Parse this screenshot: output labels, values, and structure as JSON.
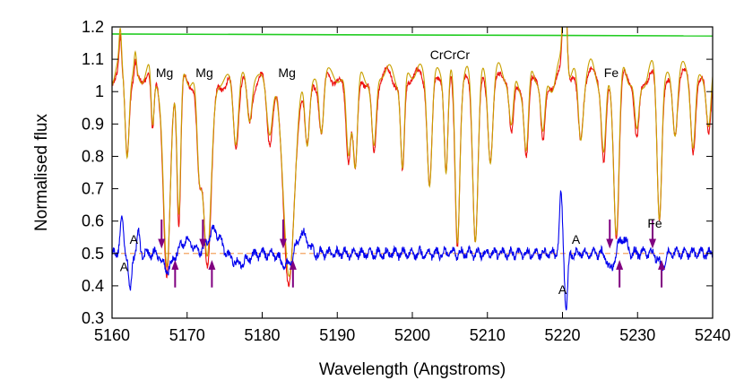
{
  "chart_data": {
    "type": "line",
    "title": "",
    "xlabel": "Wavelength (Angstroms)",
    "ylabel": "Normalised flux",
    "xlim": [
      5160,
      5240
    ],
    "ylim": [
      0.3,
      1.2
    ],
    "xticks": [
      5160,
      5170,
      5180,
      5190,
      5200,
      5210,
      5220,
      5230,
      5240
    ],
    "yticks": [
      0.3,
      0.4,
      0.5,
      0.6,
      0.7,
      0.8,
      0.9,
      1.0,
      1.1,
      1.2
    ],
    "ytick_labels": [
      "0.3",
      "0.4",
      "0.5",
      "0.6",
      "0.7",
      "0.8",
      "0.9",
      "1",
      "1.1",
      "1.2"
    ],
    "grid": false,
    "reference_line": {
      "y": 0.5,
      "style": "dashed",
      "color": "#f4a460"
    },
    "top_line": {
      "y_start": 1.178,
      "y_end": 1.172,
      "color": "#22cc22"
    },
    "series_colors": {
      "observed": "#ee1111",
      "model": "#c8a000",
      "residual": "#0000ee"
    },
    "continuum": 1.05,
    "lines": [
      {
        "x": 5162.0,
        "depth": 0.22,
        "width": 0.25
      },
      {
        "x": 5165.4,
        "depth": 0.18,
        "width": 0.2
      },
      {
        "x": 5167.3,
        "depth": 0.6,
        "width": 0.45
      },
      {
        "x": 5168.9,
        "depth": 0.46,
        "width": 0.25
      },
      {
        "x": 5171.6,
        "depth": 0.25,
        "width": 0.3
      },
      {
        "x": 5172.7,
        "depth": 0.57,
        "width": 0.55
      },
      {
        "x": 5176.5,
        "depth": 0.22,
        "width": 0.35
      },
      {
        "x": 5178.3,
        "depth": 0.12,
        "width": 0.3
      },
      {
        "x": 5181.0,
        "depth": 0.2,
        "width": 0.4
      },
      {
        "x": 5183.6,
        "depth": 0.62,
        "width": 0.75
      },
      {
        "x": 5186.0,
        "depth": 0.2,
        "width": 0.3
      },
      {
        "x": 5187.9,
        "depth": 0.18,
        "width": 0.3
      },
      {
        "x": 5191.5,
        "depth": 0.24,
        "width": 0.3
      },
      {
        "x": 5192.4,
        "depth": 0.3,
        "width": 0.3
      },
      {
        "x": 5194.9,
        "depth": 0.22,
        "width": 0.3
      },
      {
        "x": 5198.7,
        "depth": 0.28,
        "width": 0.25
      },
      {
        "x": 5202.3,
        "depth": 0.3,
        "width": 0.3
      },
      {
        "x": 5204.5,
        "depth": 0.3,
        "width": 0.25
      },
      {
        "x": 5206.0,
        "depth": 0.48,
        "width": 0.3
      },
      {
        "x": 5208.4,
        "depth": 0.5,
        "width": 0.35
      },
      {
        "x": 5210.4,
        "depth": 0.22,
        "width": 0.3
      },
      {
        "x": 5213.2,
        "depth": 0.18,
        "width": 0.3
      },
      {
        "x": 5215.2,
        "depth": 0.25,
        "width": 0.3
      },
      {
        "x": 5217.4,
        "depth": 0.2,
        "width": 0.3
      },
      {
        "x": 5222.4,
        "depth": 0.16,
        "width": 0.3
      },
      {
        "x": 5225.5,
        "depth": 0.25,
        "width": 0.3
      },
      {
        "x": 5227.2,
        "depth": 0.48,
        "width": 0.35
      },
      {
        "x": 5229.9,
        "depth": 0.18,
        "width": 0.3
      },
      {
        "x": 5232.9,
        "depth": 0.42,
        "width": 0.3
      },
      {
        "x": 5235.0,
        "depth": 0.16,
        "width": 0.3
      },
      {
        "x": 5237.4,
        "depth": 0.2,
        "width": 0.3
      },
      {
        "x": 5239.5,
        "depth": 0.16,
        "width": 0.3
      }
    ],
    "spikes": [
      {
        "x": 5161.1,
        "height": 0.1,
        "width": 0.15
      },
      {
        "x": 5220.3,
        "height": 0.35,
        "width": 0.25
      },
      {
        "x": 5163.1,
        "height": 0.06,
        "width": 0.15
      }
    ],
    "residual_features": [
      {
        "x": 5161.3,
        "amp": 0.1,
        "width": 0.25
      },
      {
        "x": 5162.4,
        "amp": -0.12,
        "width": 0.2
      },
      {
        "x": 5163.5,
        "amp": 0.06,
        "width": 0.2
      },
      {
        "x": 5167.4,
        "amp": -0.05,
        "width": 0.6
      },
      {
        "x": 5170.0,
        "amp": 0.04,
        "width": 0.8
      },
      {
        "x": 5173.6,
        "amp": 0.07,
        "width": 0.8
      },
      {
        "x": 5177.0,
        "amp": -0.03,
        "width": 1.0
      },
      {
        "x": 5183.2,
        "amp": -0.04,
        "width": 0.7
      },
      {
        "x": 5185.3,
        "amp": 0.06,
        "width": 0.7
      },
      {
        "x": 5219.8,
        "amp": 0.18,
        "width": 0.2
      },
      {
        "x": 5220.5,
        "amp": -0.17,
        "width": 0.2
      },
      {
        "x": 5226.4,
        "amp": -0.05,
        "width": 0.4
      },
      {
        "x": 5228.0,
        "amp": 0.05,
        "width": 0.5
      },
      {
        "x": 5233.2,
        "amp": -0.04,
        "width": 0.4
      }
    ],
    "annotations": [
      {
        "text": "Mg",
        "x": 5167.0,
        "y": 1.045
      },
      {
        "text": "Mg",
        "x": 5172.3,
        "y": 1.045
      },
      {
        "text": "Mg",
        "x": 5183.3,
        "y": 1.045
      },
      {
        "text": "CrCrCr",
        "x": 5205.0,
        "y": 1.1
      },
      {
        "text": "Fe",
        "x": 5226.5,
        "y": 1.045
      },
      {
        "text": "Fe",
        "x": 5232.3,
        "y": 0.58
      },
      {
        "text": "A",
        "x": 5162.9,
        "y": 0.53
      },
      {
        "text": "A",
        "x": 5161.6,
        "y": 0.445
      },
      {
        "text": "A",
        "x": 5221.8,
        "y": 0.53
      },
      {
        "text": "A",
        "x": 5220.0,
        "y": 0.375
      }
    ],
    "arrows_down": [
      5166.6,
      5172.1,
      5182.8,
      5226.3,
      5232.0
    ],
    "arrows_up": [
      5168.4,
      5173.3,
      5184.1,
      5227.6,
      5233.2
    ],
    "arrow_color": "#800080"
  }
}
